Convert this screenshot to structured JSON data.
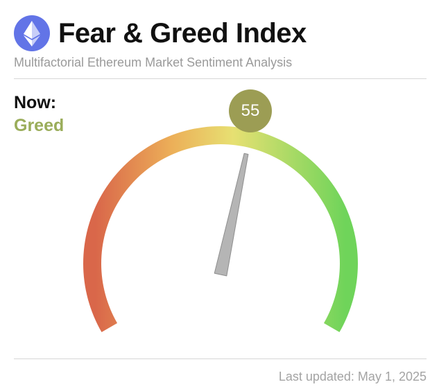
{
  "header": {
    "title": "Fear & Greed Index",
    "subtitle": "Multifactorial Ethereum Market Sentiment Analysis",
    "logo_icon": "ethereum-icon"
  },
  "current": {
    "label": "Now:",
    "sentiment": "Greed",
    "score": "55",
    "score_value": 55,
    "sentiment_color": "#9aad5a",
    "badge_color": "#9c9d54"
  },
  "gauge": {
    "min": 0,
    "max": 100,
    "value": 55,
    "colors": [
      "#d9674a",
      "#ecae58",
      "#e7e072",
      "#6fd45a"
    ],
    "needle_color": "#b5b5b5"
  },
  "footer": {
    "last_updated": "Last updated: May 1, 2025"
  }
}
